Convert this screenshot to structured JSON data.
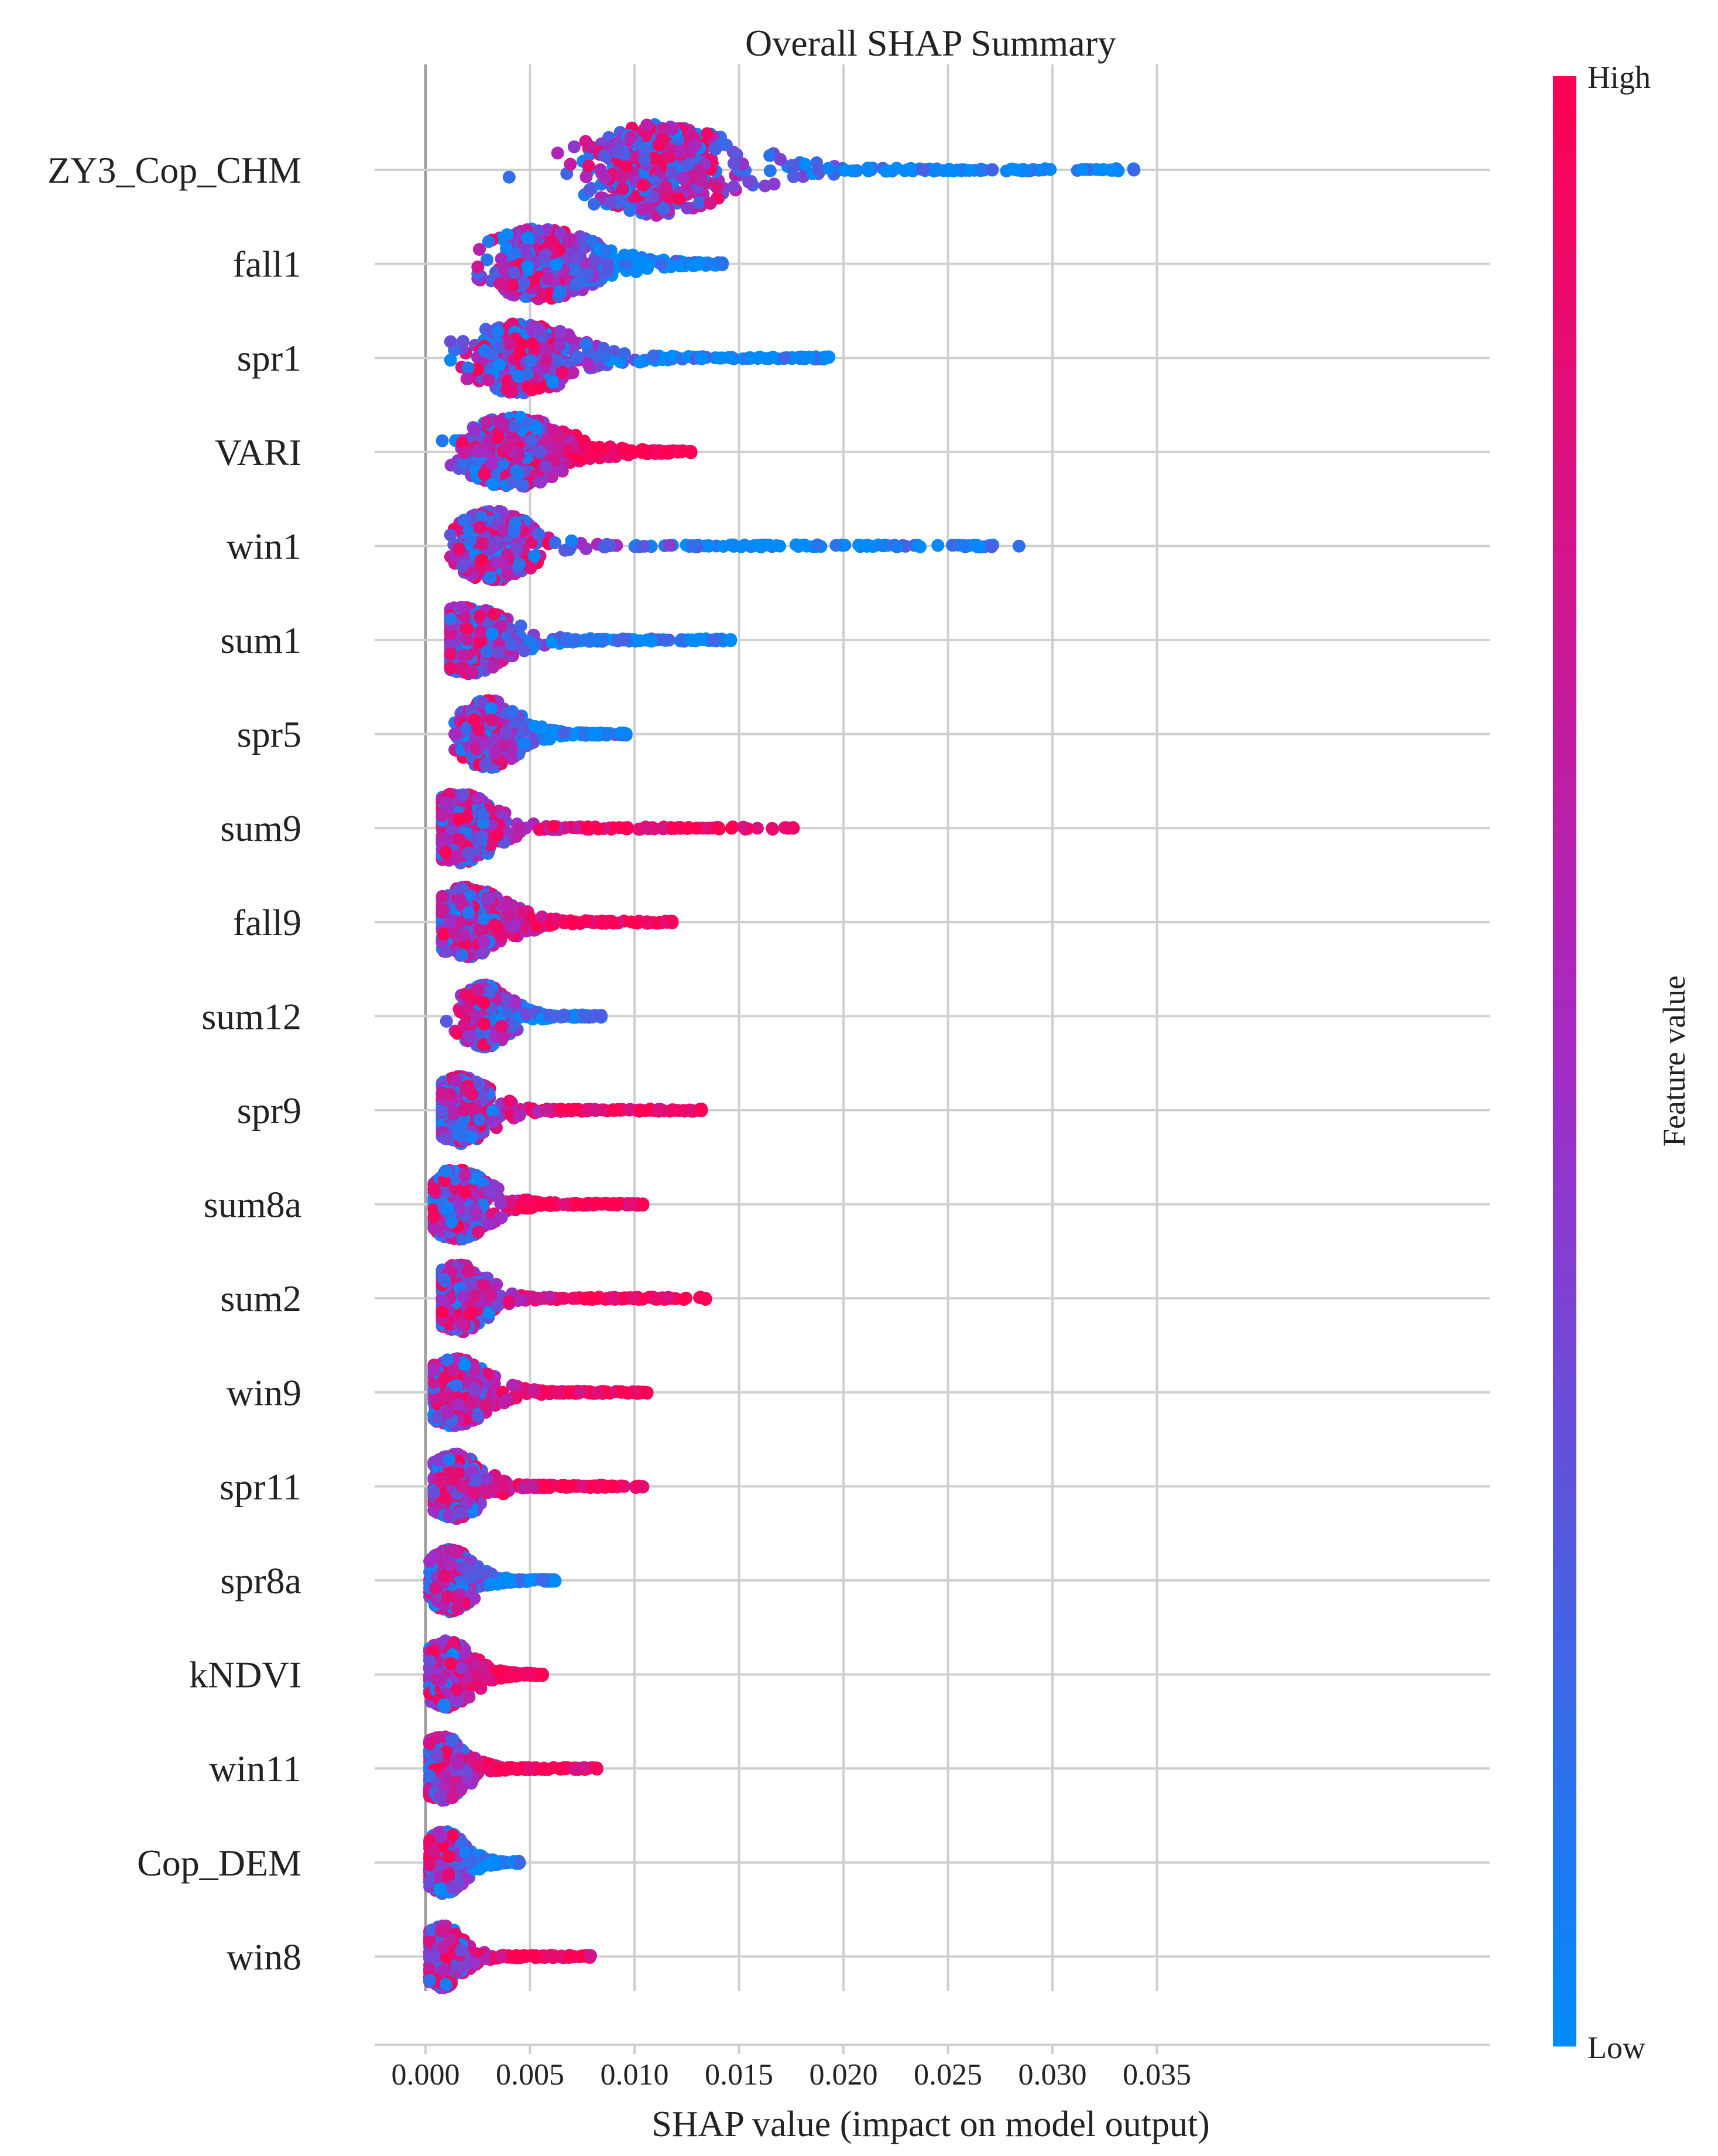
{
  "chart_data": {
    "type": "scatter",
    "subtype": "shap-beeswarm",
    "title": "Overall SHAP Summary",
    "xlabel": "SHAP value (impact on model output)",
    "xlim": [
      -0.0018,
      0.0355
    ],
    "xticks": [
      "0.000",
      "0.005",
      "0.010",
      "0.015",
      "0.020",
      "0.025",
      "0.030",
      "0.035"
    ],
    "xtick_values": [
      0.0,
      0.005,
      0.01,
      0.015,
      0.02,
      0.025,
      0.03,
      0.035
    ],
    "grid": true,
    "colorbar": {
      "label": "Feature value",
      "high_label": "High",
      "low_label": "Low",
      "high_color": "#ff0052",
      "mid_color": "#a32bc5",
      "low_color": "#008bfb",
      "placement": "right"
    },
    "features": [
      {
        "name": "ZY3_Cop_CHM",
        "min": 0.004,
        "max": 0.0339,
        "mode": 0.011,
        "spread": 0.0032,
        "width": 0.68,
        "high_side": "low"
      },
      {
        "name": "fall1",
        "min": 0.0025,
        "max": 0.0142,
        "mode": 0.0055,
        "spread": 0.0022,
        "width": 0.52,
        "high_side": "low"
      },
      {
        "name": "spr1",
        "min": 0.0012,
        "max": 0.0193,
        "mode": 0.0045,
        "spread": 0.0022,
        "width": 0.52,
        "high_side": "low"
      },
      {
        "name": "VARI",
        "min": 0.0008,
        "max": 0.0127,
        "mode": 0.0042,
        "spread": 0.002,
        "width": 0.52,
        "high_side": "high"
      },
      {
        "name": "win1",
        "min": 0.0012,
        "max": 0.0284,
        "mode": 0.0033,
        "spread": 0.0016,
        "width": 0.52,
        "high_side": "low"
      },
      {
        "name": "sum1",
        "min": 0.0012,
        "max": 0.0146,
        "mode": 0.002,
        "spread": 0.0016,
        "width": 0.5,
        "high_side": "low"
      },
      {
        "name": "spr5",
        "min": 0.0014,
        "max": 0.0096,
        "mode": 0.003,
        "spread": 0.0012,
        "width": 0.5,
        "high_side": "low"
      },
      {
        "name": "sum9",
        "min": 0.0008,
        "max": 0.0176,
        "mode": 0.0016,
        "spread": 0.0014,
        "width": 0.52,
        "high_side": "high"
      },
      {
        "name": "fall9",
        "min": 0.0008,
        "max": 0.0118,
        "mode": 0.002,
        "spread": 0.0015,
        "width": 0.52,
        "high_side": "high"
      },
      {
        "name": "sum12",
        "min": 0.001,
        "max": 0.0084,
        "mode": 0.0028,
        "spread": 0.001,
        "width": 0.46,
        "high_side": "low"
      },
      {
        "name": "spr9",
        "min": 0.0008,
        "max": 0.0132,
        "mode": 0.0017,
        "spread": 0.0012,
        "width": 0.5,
        "high_side": "high"
      },
      {
        "name": "sum8a",
        "min": 0.0004,
        "max": 0.0104,
        "mode": 0.0015,
        "spread": 0.0013,
        "width": 0.52,
        "high_side": "high"
      },
      {
        "name": "sum2",
        "min": 0.0008,
        "max": 0.0134,
        "mode": 0.0016,
        "spread": 0.0011,
        "width": 0.5,
        "high_side": "high"
      },
      {
        "name": "win9",
        "min": 0.0004,
        "max": 0.0106,
        "mode": 0.0014,
        "spread": 0.0013,
        "width": 0.5,
        "high_side": "high"
      },
      {
        "name": "spr11",
        "min": 0.0004,
        "max": 0.0104,
        "mode": 0.0014,
        "spread": 0.0011,
        "width": 0.48,
        "high_side": "high"
      },
      {
        "name": "spr8a",
        "min": 0.0002,
        "max": 0.0062,
        "mode": 0.0012,
        "spread": 0.0009,
        "width": 0.46,
        "high_side": "low"
      },
      {
        "name": "kNDVI",
        "min": 0.0002,
        "max": 0.0056,
        "mode": 0.001,
        "spread": 0.001,
        "width": 0.5,
        "high_side": "high"
      },
      {
        "name": "win11",
        "min": 0.0002,
        "max": 0.0082,
        "mode": 0.0008,
        "spread": 0.0009,
        "width": 0.48,
        "high_side": "high"
      },
      {
        "name": "Cop_DEM",
        "min": 0.0002,
        "max": 0.0045,
        "mode": 0.0009,
        "spread": 0.0008,
        "width": 0.46,
        "high_side": "low"
      },
      {
        "name": "win8",
        "min": 0.0002,
        "max": 0.0079,
        "mode": 0.0008,
        "spread": 0.0008,
        "width": 0.46,
        "high_side": "high"
      }
    ]
  }
}
